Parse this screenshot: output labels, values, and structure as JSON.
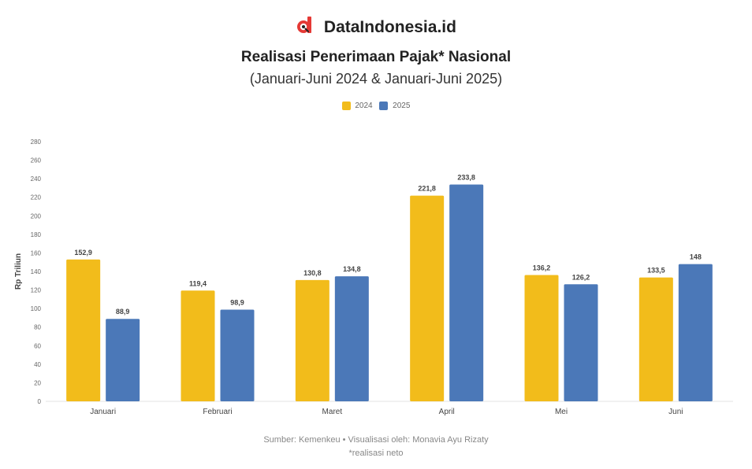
{
  "brand": {
    "name": "DataIndonesia.id",
    "icon": "dataindonesia-logo-icon",
    "color": "#e53935"
  },
  "chart_data": {
    "type": "bar",
    "title": "Realisasi Penerimaan Pajak* Nasional",
    "subtitle": "(Januari-Juni 2024 & Januari-Juni 2025)",
    "ylabel": "Rp Triliun",
    "xlabel": "",
    "ylim": [
      0,
      280
    ],
    "yticks": [
      0,
      20,
      40,
      60,
      80,
      100,
      120,
      140,
      160,
      180,
      200,
      220,
      240,
      260,
      280
    ],
    "grid": false,
    "legend_position": "top-center",
    "categories": [
      "Januari",
      "Februari",
      "Maret",
      "April",
      "Mei",
      "Juni"
    ],
    "series": [
      {
        "name": "2024",
        "color": "#f2bc1b",
        "values": [
          152.9,
          119.4,
          130.8,
          221.8,
          136.2,
          133.5
        ],
        "labels": [
          "152,9",
          "119,4",
          "130,8",
          "221,8",
          "136,2",
          "133,5"
        ]
      },
      {
        "name": "2025",
        "color": "#4b78b8",
        "values": [
          88.9,
          98.9,
          134.8,
          233.8,
          126.2,
          148
        ],
        "labels": [
          "88,9",
          "98,9",
          "134,8",
          "233,8",
          "126,2",
          "148"
        ]
      }
    ]
  },
  "footer": {
    "source": "Sumber: Kemenkeu • Visualisasi oleh: Monavia Ayu Rizaty",
    "note": "*realisasi neto"
  }
}
